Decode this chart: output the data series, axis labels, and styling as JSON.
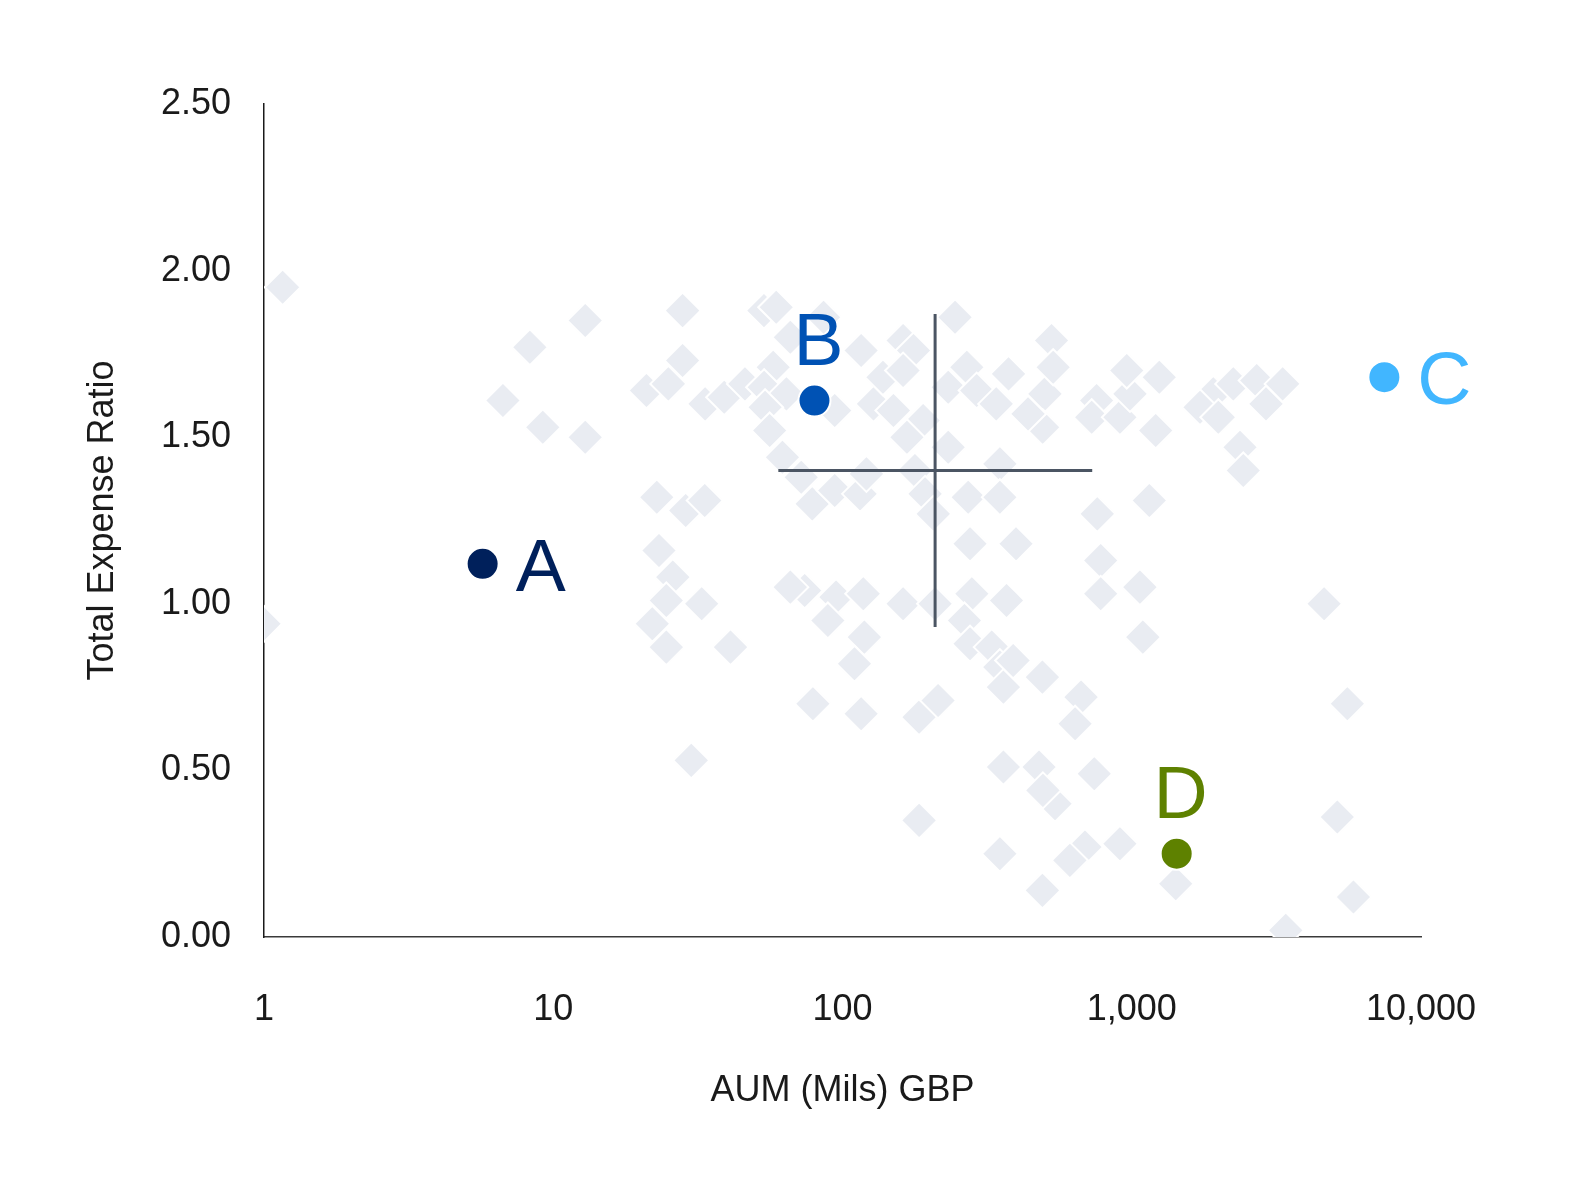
{
  "chart_data": {
    "type": "scatter",
    "xlabel": "AUM (Mils) GBP",
    "ylabel": "Total Expense Ratio",
    "log": "x",
    "grid": false,
    "legend": false,
    "xlim": [
      1,
      10000
    ],
    "xticks": [
      1,
      10,
      100,
      {
        "value": 1000,
        "label": "1,000"
      },
      {
        "value": 10000,
        "label": "10,000"
      }
    ],
    "ylim": [
      0,
      2.5
    ],
    "yticks": [
      {
        "value": 0,
        "label": "0.00"
      },
      {
        "value": 0.5,
        "label": "0.50"
      },
      {
        "value": 1,
        "label": "1.00"
      },
      {
        "value": 1.5,
        "label": "1.50"
      },
      {
        "value": 2,
        "label": "2.00"
      },
      {
        "value": 2.5,
        "label": "2.50"
      }
    ],
    "series": [
      {
        "type": "scatter",
        "marker": "diamond",
        "color": "#e9ecf2",
        "x": [
          1.16,
          1.0,
          6.7,
          8.3,
          9.2,
          12.9,
          12.9,
          21,
          25,
          28,
          28,
          33.5,
          39,
          46,
          53.5,
          59,
          57.6,
          53.6,
          66,
          64,
          54,
          56,
          86,
          94,
          62,
          72,
          116,
          128,
          138,
          162,
          176,
          162,
          150,
          190,
          167,
          245,
          232,
          269,
          232,
          291,
          350,
          375,
          340,
          22.8,
          28.7,
          33.4,
          23.2,
          25.9,
          24.6,
          32.6,
          78.6,
          94,
          115,
          121,
          178,
          193,
          206,
          272,
          350,
          276,
          398,
          74,
          66,
          95,
          118,
          162,
          209,
          280,
          369,
          22,
          24.6,
          41,
          89,
          119,
          110,
          79,
          116,
          184,
          214,
          30,
          184,
          360,
          350,
          264,
          276,
          328,
          350,
          360,
          389,
          528,
          501,
          535,
          492,
          438,
          756,
          727,
          910,
          986,
          961,
          1245,
          1210,
          1914,
          1722,
          2244,
          2704,
          3325,
          2912,
          1992,
          2367,
          2430,
          760,
          1150,
          781,
          781,
          1067,
          4624,
          1092,
          491,
          668,
          637,
          478,
          742,
          543,
          493,
          491,
          689,
          910,
          611,
          1419,
          5564,
          5136,
          5840,
          3407
        ],
        "values": [
          1.95,
          0.94,
          1.61,
          1.77,
          1.53,
          1.85,
          1.5,
          1.64,
          1.66,
          1.88,
          1.73,
          1.6,
          1.62,
          1.66,
          1.88,
          1.89,
          1.71,
          1.65,
          1.8,
          1.63,
          1.59,
          1.52,
          1.86,
          1.58,
          1.44,
          1.38,
          1.76,
          1.6,
          1.68,
          1.79,
          1.76,
          1.7,
          1.58,
          1.55,
          1.5,
          1.86,
          1.47,
          1.71,
          1.65,
          1.64,
          1.42,
          1.69,
          1.6,
          1.32,
          1.28,
          1.31,
          1.16,
          1.08,
          1.01,
          1.0,
          1.3,
          1.34,
          1.33,
          1.39,
          1.4,
          1.33,
          1.27,
          1.32,
          1.32,
          1.18,
          1.18,
          1.04,
          1.05,
          1.02,
          1.03,
          1.0,
          1.0,
          1.03,
          1.01,
          0.94,
          0.87,
          0.87,
          0.95,
          0.9,
          0.82,
          0.7,
          0.67,
          0.66,
          0.71,
          0.53,
          0.35,
          0.51,
          0.25,
          0.95,
          0.88,
          0.87,
          0.81,
          0.75,
          0.83,
          1.79,
          1.63,
          1.71,
          1.53,
          1.57,
          1.61,
          1.56,
          1.56,
          1.63,
          1.7,
          1.68,
          1.52,
          1.63,
          1.59,
          1.66,
          1.67,
          1.66,
          1.6,
          1.56,
          1.47,
          1.4,
          1.27,
          1.31,
          1.13,
          1.03,
          1.05,
          1.0,
          0.9,
          0.78,
          0.72,
          0.64,
          0.51,
          0.49,
          0.4,
          0.44,
          0.14,
          0.27,
          0.28,
          0.23,
          0.16,
          0.7,
          0.36,
          0.12,
          0.02
        ]
      },
      {
        "type": "line",
        "marker": "none",
        "line_style": "solid",
        "color": "#4b5563",
        "x": [
          60,
          730
        ],
        "values": [
          1.4,
          1.4
        ]
      },
      {
        "type": "line",
        "marker": "none",
        "line_style": "solid",
        "color": "#4b5563",
        "x": [
          209,
          209
        ],
        "values": [
          0.93,
          1.87
        ]
      },
      {
        "name": "A",
        "type": "scatter",
        "marker": "circle",
        "color": "#00205b",
        "x": [
          5.7
        ],
        "values": [
          1.12
        ]
      },
      {
        "name": "B",
        "type": "scatter",
        "marker": "circle",
        "color": "#0052b4",
        "x": [
          80
        ],
        "values": [
          1.61
        ]
      },
      {
        "name": "C",
        "type": "scatter",
        "marker": "circle",
        "color": "#41b6ff",
        "x": [
          7470
        ],
        "values": [
          1.68
        ]
      },
      {
        "name": "D",
        "type": "scatter",
        "marker": "circle",
        "color": "#5e8100",
        "x": [
          1430
        ],
        "values": [
          0.25
        ]
      }
    ]
  }
}
